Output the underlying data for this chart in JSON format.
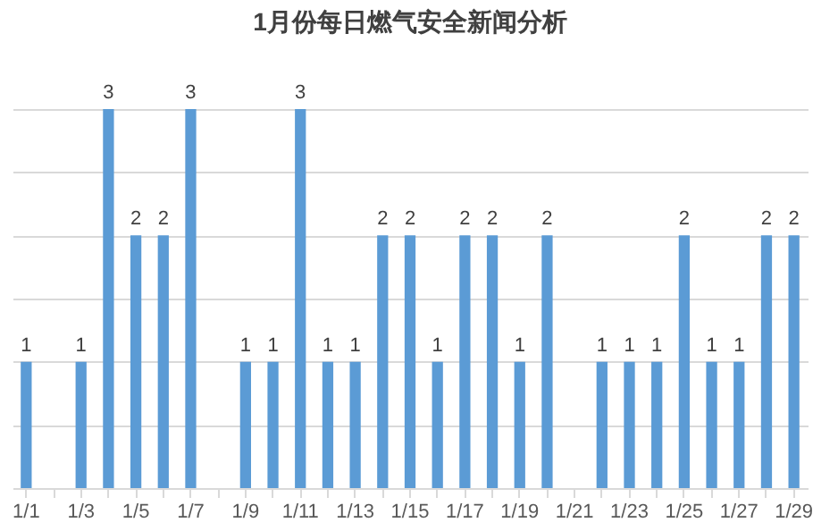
{
  "chart_data": {
    "type": "bar",
    "title": "1月份每日燃气安全新闻分析",
    "categories": [
      "1/1",
      null,
      "1/3",
      null,
      "1/5",
      null,
      "1/7",
      null,
      "1/9",
      null,
      "1/11",
      null,
      "1/13",
      null,
      "1/15",
      null,
      "1/17",
      null,
      "1/19",
      null,
      "1/21",
      null,
      "1/23",
      null,
      "1/25",
      null,
      "1/27",
      null,
      "1/29"
    ],
    "values": [
      1,
      null,
      1,
      3,
      2,
      2,
      3,
      null,
      1,
      1,
      3,
      1,
      1,
      2,
      2,
      1,
      2,
      2,
      1,
      2,
      null,
      1,
      1,
      1,
      2,
      1,
      1,
      2,
      2
    ],
    "color": "#5b9bd5",
    "data_labels": true,
    "tick_labels": "x",
    "grid": "y"
  }
}
